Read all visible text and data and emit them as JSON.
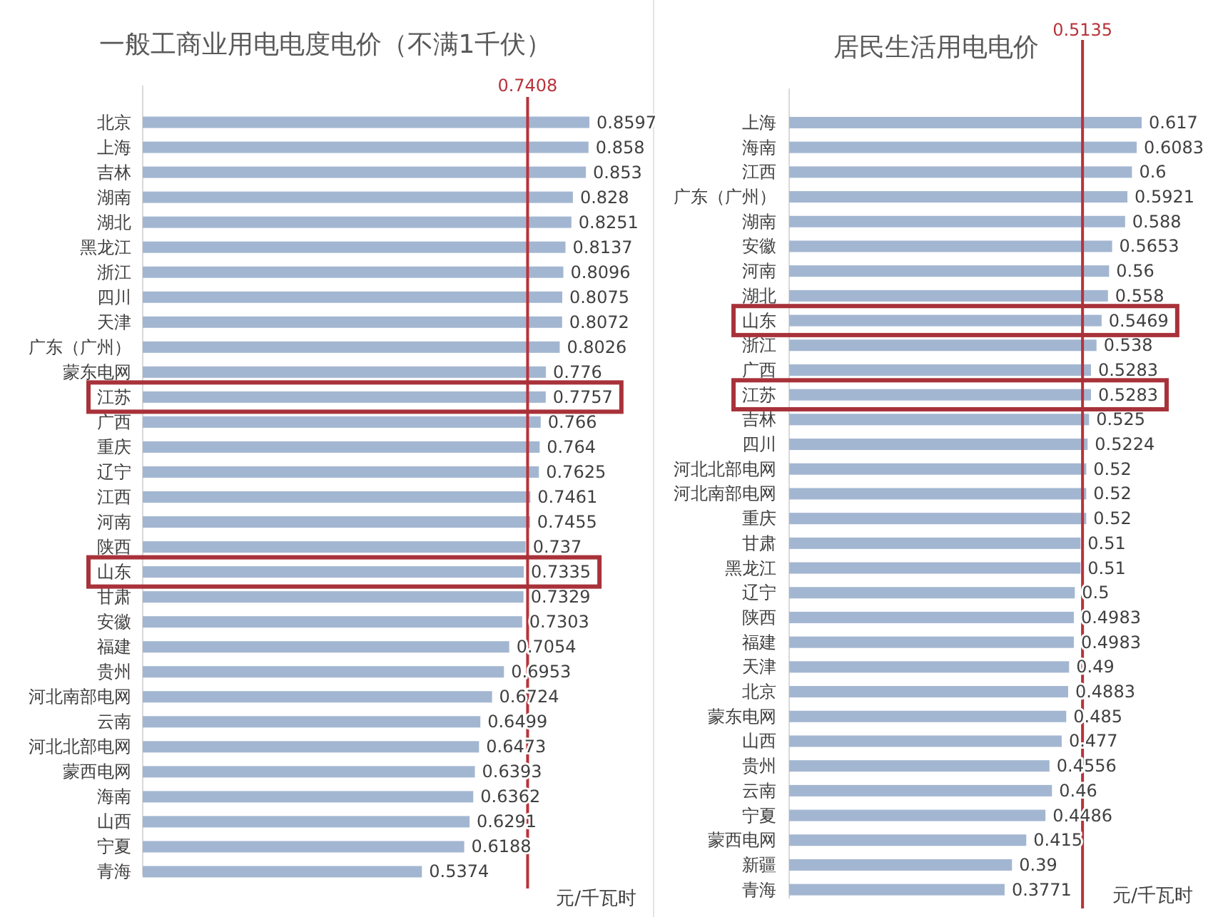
{
  "chart_data": [
    {
      "type": "bar",
      "orientation": "horizontal",
      "title": "一般工商业用电电度电价（不满1千伏）",
      "xlabel": "元/千瓦时",
      "color": "#a3b6d1",
      "data_labels": true,
      "categories": [
        "北京",
        "上海",
        "吉林",
        "湖南",
        "湖北",
        "黑龙江",
        "浙江",
        "四川",
        "天津",
        "广东（广州）",
        "蒙东电网",
        "江苏",
        "广西",
        "重庆",
        "辽宁",
        "江西",
        "河南",
        "陕西",
        "山东",
        "甘肃",
        "安徽",
        "福建",
        "贵州",
        "河北南部电网",
        "云南",
        "河北北部电网",
        "蒙西电网",
        "海南",
        "山西",
        "宁夏",
        "青海"
      ],
      "values": [
        0.8597,
        0.858,
        0.853,
        0.828,
        0.8251,
        0.8137,
        0.8096,
        0.8075,
        0.8072,
        0.8026,
        0.776,
        0.7757,
        0.766,
        0.764,
        0.7625,
        0.7461,
        0.7455,
        0.737,
        0.7335,
        0.7329,
        0.7303,
        0.7054,
        0.6953,
        0.6724,
        0.6499,
        0.6473,
        0.6393,
        0.6362,
        0.6291,
        0.6188,
        0.5374
      ],
      "ref_lines": [
        {
          "axis": "x",
          "value": 0.7408,
          "label": "0.7408",
          "color": "#b8323a"
        }
      ]
    },
    {
      "type": "bar",
      "orientation": "horizontal",
      "title": "居民生活用电电价",
      "xlabel": "元/千瓦时",
      "color": "#a3b6d1",
      "data_labels": true,
      "categories": [
        "上海",
        "海南",
        "江西",
        "广东（广州）",
        "湖南",
        "安徽",
        "河南",
        "湖北",
        "山东",
        "浙江",
        "广西",
        "江苏",
        "吉林",
        "四川",
        "河北北部电网",
        "河北南部电网",
        "重庆",
        "甘肃",
        "黑龙江",
        "辽宁",
        "陕西",
        "福建",
        "天津",
        "北京",
        "蒙东电网",
        "山西",
        "贵州",
        "云南",
        "宁夏",
        "蒙西电网",
        "新疆",
        "青海"
      ],
      "values": [
        0.617,
        0.6083,
        0.6,
        0.5921,
        0.588,
        0.5653,
        0.56,
        0.558,
        0.5469,
        0.538,
        0.5283,
        0.5283,
        0.525,
        0.5224,
        0.52,
        0.52,
        0.52,
        0.51,
        0.51,
        0.5,
        0.4983,
        0.4983,
        0.49,
        0.4883,
        0.485,
        0.477,
        0.4556,
        0.46,
        0.4486,
        0.415,
        0.39,
        0.3771
      ],
      "ref_lines": [
        {
          "axis": "x",
          "value": 0.5135,
          "label": "0.5135",
          "color": "#b8323a"
        }
      ]
    }
  ]
}
